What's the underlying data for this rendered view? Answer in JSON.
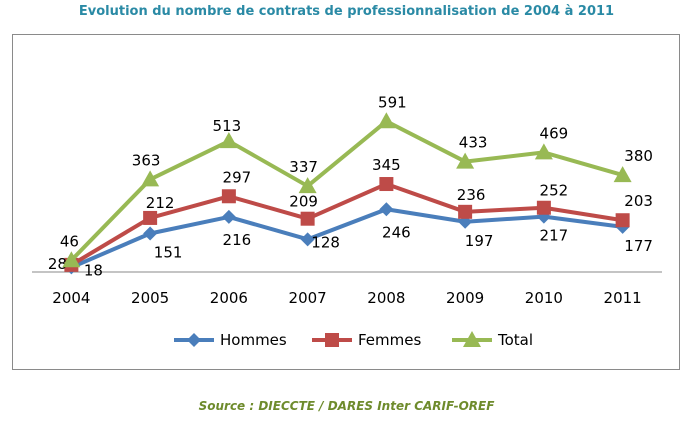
{
  "title": "Evolution du nombre de contrats de professionnalisation de 2004 à 2011",
  "source": "Source : DIECCTE / DARES Inter CARIF-OREF",
  "colors": {
    "hommes": "#4a7ebb",
    "femmes": "#be4b48",
    "total": "#98b954",
    "title": "#2a8aa5",
    "source": "#6e8b2c"
  },
  "chart_data": {
    "type": "line",
    "title": "Evolution du nombre de contrats de professionnalisation de 2004 à 2011",
    "categories": [
      "2004",
      "2005",
      "2006",
      "2007",
      "2008",
      "2009",
      "2010",
      "2011"
    ],
    "xlabel": "",
    "ylabel": "",
    "ylim": [
      0,
      650
    ],
    "grid": false,
    "legend": "bottom",
    "series": [
      {
        "name": "Hommes",
        "marker": "diamond",
        "color": "#4a7ebb",
        "values": [
          18,
          151,
          216,
          128,
          246,
          197,
          217,
          177
        ]
      },
      {
        "name": "Femmes",
        "marker": "square",
        "color": "#be4b48",
        "values": [
          28,
          212,
          297,
          209,
          345,
          236,
          252,
          203
        ]
      },
      {
        "name": "Total",
        "marker": "triangle",
        "color": "#98b954",
        "values": [
          46,
          363,
          513,
          337,
          591,
          433,
          469,
          380
        ]
      }
    ]
  }
}
